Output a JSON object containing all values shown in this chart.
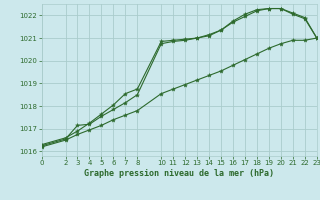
{
  "bg_color": "#cce8ec",
  "grid_color": "#aacccc",
  "line_color": "#2d6a2d",
  "title": "Graphe pression niveau de la mer (hPa)",
  "xlim": [
    0,
    23
  ],
  "ylim": [
    1015.8,
    1022.5
  ],
  "yticks": [
    1016,
    1017,
    1018,
    1019,
    1020,
    1021,
    1022
  ],
  "xticks": [
    0,
    2,
    3,
    4,
    5,
    6,
    7,
    8,
    10,
    11,
    12,
    13,
    14,
    15,
    16,
    17,
    18,
    19,
    20,
    21,
    22,
    23
  ],
  "series1_x": [
    0,
    2,
    3,
    4,
    5,
    6,
    7,
    8,
    10,
    11,
    12,
    13,
    14,
    15,
    16,
    17,
    18,
    19,
    20,
    21,
    22,
    23
  ],
  "series1_y": [
    1016.3,
    1016.6,
    1016.9,
    1017.25,
    1017.65,
    1018.05,
    1018.55,
    1018.75,
    1020.85,
    1020.9,
    1020.95,
    1021.0,
    1021.1,
    1021.35,
    1021.75,
    1022.05,
    1022.25,
    1022.3,
    1022.3,
    1022.05,
    1021.85,
    1021.0
  ],
  "series2_x": [
    0,
    2,
    3,
    4,
    5,
    6,
    7,
    8,
    10,
    11,
    12,
    13,
    14,
    15,
    16,
    17,
    18,
    19,
    20,
    21,
    22,
    23
  ],
  "series2_y": [
    1016.25,
    1016.55,
    1017.15,
    1017.2,
    1017.55,
    1017.85,
    1018.15,
    1018.5,
    1020.75,
    1020.85,
    1020.9,
    1021.0,
    1021.15,
    1021.35,
    1021.7,
    1021.95,
    1022.2,
    1022.3,
    1022.3,
    1022.1,
    1021.9,
    1021.0
  ],
  "series3_x": [
    0,
    2,
    3,
    4,
    5,
    6,
    7,
    8,
    10,
    11,
    12,
    13,
    14,
    15,
    16,
    17,
    18,
    19,
    20,
    21,
    22,
    23
  ],
  "series3_y": [
    1016.2,
    1016.5,
    1016.75,
    1016.95,
    1017.15,
    1017.4,
    1017.6,
    1017.8,
    1018.55,
    1018.75,
    1018.95,
    1019.15,
    1019.35,
    1019.55,
    1019.8,
    1020.05,
    1020.3,
    1020.55,
    1020.75,
    1020.9,
    1020.9,
    1021.0
  ]
}
